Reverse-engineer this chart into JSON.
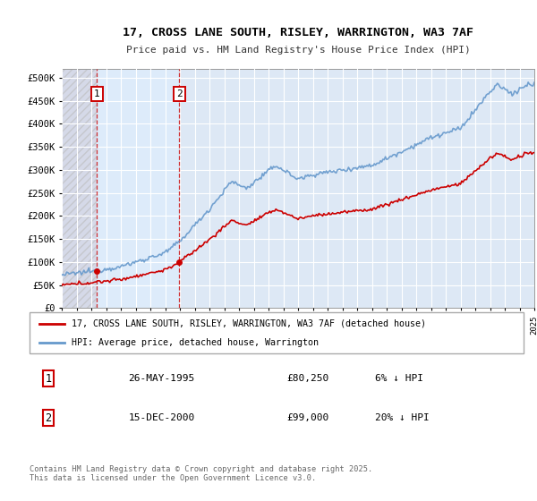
{
  "title_line1": "17, CROSS LANE SOUTH, RISLEY, WARRINGTON, WA3 7AF",
  "title_line2": "Price paid vs. HM Land Registry's House Price Index (HPI)",
  "legend_label_red": "17, CROSS LANE SOUTH, RISLEY, WARRINGTON, WA3 7AF (detached house)",
  "legend_label_blue": "HPI: Average price, detached house, Warrington",
  "annotation1_label": "1",
  "annotation1_date": "26-MAY-1995",
  "annotation1_price": "£80,250",
  "annotation1_hpi": "6% ↓ HPI",
  "annotation2_label": "2",
  "annotation2_date": "15-DEC-2000",
  "annotation2_price": "£99,000",
  "annotation2_hpi": "20% ↓ HPI",
  "copyright_text": "Contains HM Land Registry data © Crown copyright and database right 2025.\nThis data is licensed under the Open Government Licence v3.0.",
  "red_color": "#cc0000",
  "blue_color": "#6699cc",
  "background_color": "#ffffff",
  "plot_bg_color": "#dde8f5",
  "grid_color": "#ffffff",
  "ylim_min": 0,
  "ylim_max": 520000,
  "year_start": 1993,
  "year_end": 2025,
  "annotation1_year": 1995.38,
  "annotation2_year": 2000.95,
  "annotation1_value": 80250,
  "annotation2_value": 99000
}
